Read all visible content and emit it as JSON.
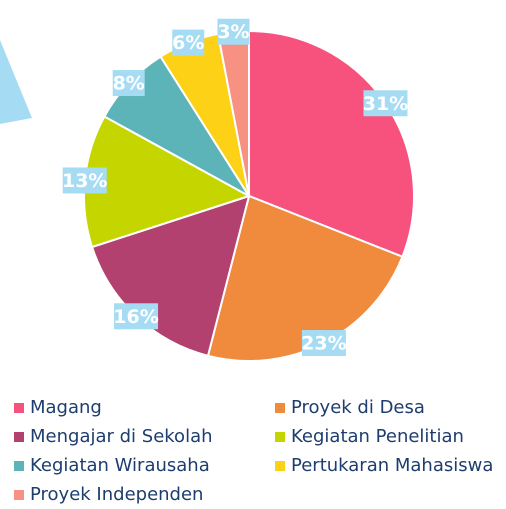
{
  "chart_data": {
    "type": "pie",
    "categories": [
      "Magang",
      "Proyek di Desa",
      "Mengajar di Sekolah",
      "Kegiatan Penelitian",
      "Kegiatan Wirausaha",
      "Pertukaran Mahasiswa",
      "Proyek Independen"
    ],
    "values": [
      31,
      23,
      16,
      13,
      8,
      6,
      3
    ],
    "value_labels": [
      "31%",
      "23%",
      "16%",
      "13%",
      "8%",
      "6%",
      "3%"
    ],
    "colors": [
      "#f7517d",
      "#f08a3c",
      "#b3416f",
      "#c5d500",
      "#5cb3b8",
      "#fcd116",
      "#f79282"
    ],
    "legend": "bottom"
  }
}
